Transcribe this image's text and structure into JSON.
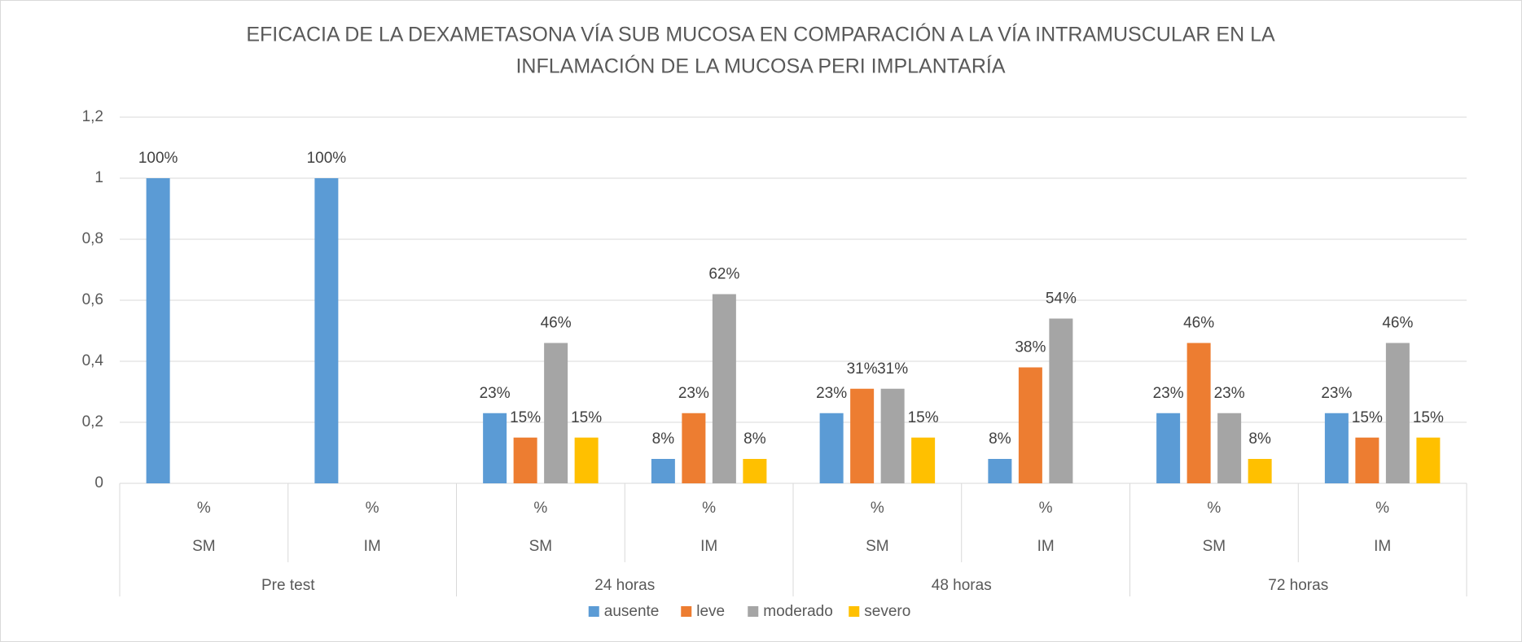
{
  "chart_data": {
    "type": "bar",
    "title": "EFICACIA  DE LA DEXAMETASONA VÍA SUB MUCOSA EN COMPARACIÓN A LA  VÍA INTRAMUSCULAR  EN LA",
    "subtitle": "INFLAMACIÓN DE LA MUCOSA PERI IMPLANTARÍA",
    "categories": [
      "%",
      "%",
      "%",
      "%",
      "%",
      "%",
      "%",
      "%"
    ],
    "subcategories": [
      "SM",
      "IM",
      "SM",
      "IM",
      "SM",
      "IM",
      "SM",
      "IM"
    ],
    "groups": [
      "Pre test",
      "24 horas",
      "48 horas",
      "72 horas"
    ],
    "series": [
      {
        "name": "ausente",
        "color": "#5b9bd5",
        "values": [
          1,
          1,
          0.23,
          0.08,
          0.23,
          0.08,
          0.23,
          0.23
        ],
        "value_labels": [
          "100%",
          "100%",
          "23%",
          "8%",
          "23%",
          "8%",
          "23%",
          "23%"
        ]
      },
      {
        "name": "leve",
        "color": "#ed7d31",
        "values": [
          null,
          null,
          0.15,
          0.23,
          0.31,
          0.38,
          0.46,
          0.15
        ],
        "value_labels": [
          null,
          null,
          "15%",
          "23%",
          "31%",
          "38%",
          "46%",
          "15%"
        ]
      },
      {
        "name": "moderado",
        "color": "#a5a5a5",
        "values": [
          null,
          null,
          0.46,
          0.62,
          0.31,
          0.54,
          0.23,
          0.46
        ],
        "value_labels": [
          null,
          null,
          "46%",
          "62%",
          "31%",
          "54%",
          "23%",
          "46%"
        ]
      },
      {
        "name": "severo",
        "color": "#ffc000",
        "values": [
          null,
          null,
          0.15,
          0.08,
          0.15,
          null,
          0.08,
          0.15
        ],
        "value_labels": [
          null,
          null,
          "15%",
          "8%",
          "15%",
          null,
          "8%",
          "15%"
        ]
      }
    ],
    "ylim": [
      0,
      1.2
    ],
    "yticks": [
      0,
      {
        "value": 0.2,
        "label": "0,2"
      },
      {
        "value": 0.4,
        "label": "0,4"
      },
      {
        "value": 0.6,
        "label": "0,6"
      },
      {
        "value": 0.8,
        "label": "0,8"
      },
      1,
      {
        "value": 1.2,
        "label": "1,2"
      }
    ],
    "grid": true,
    "legend": "bottom"
  }
}
